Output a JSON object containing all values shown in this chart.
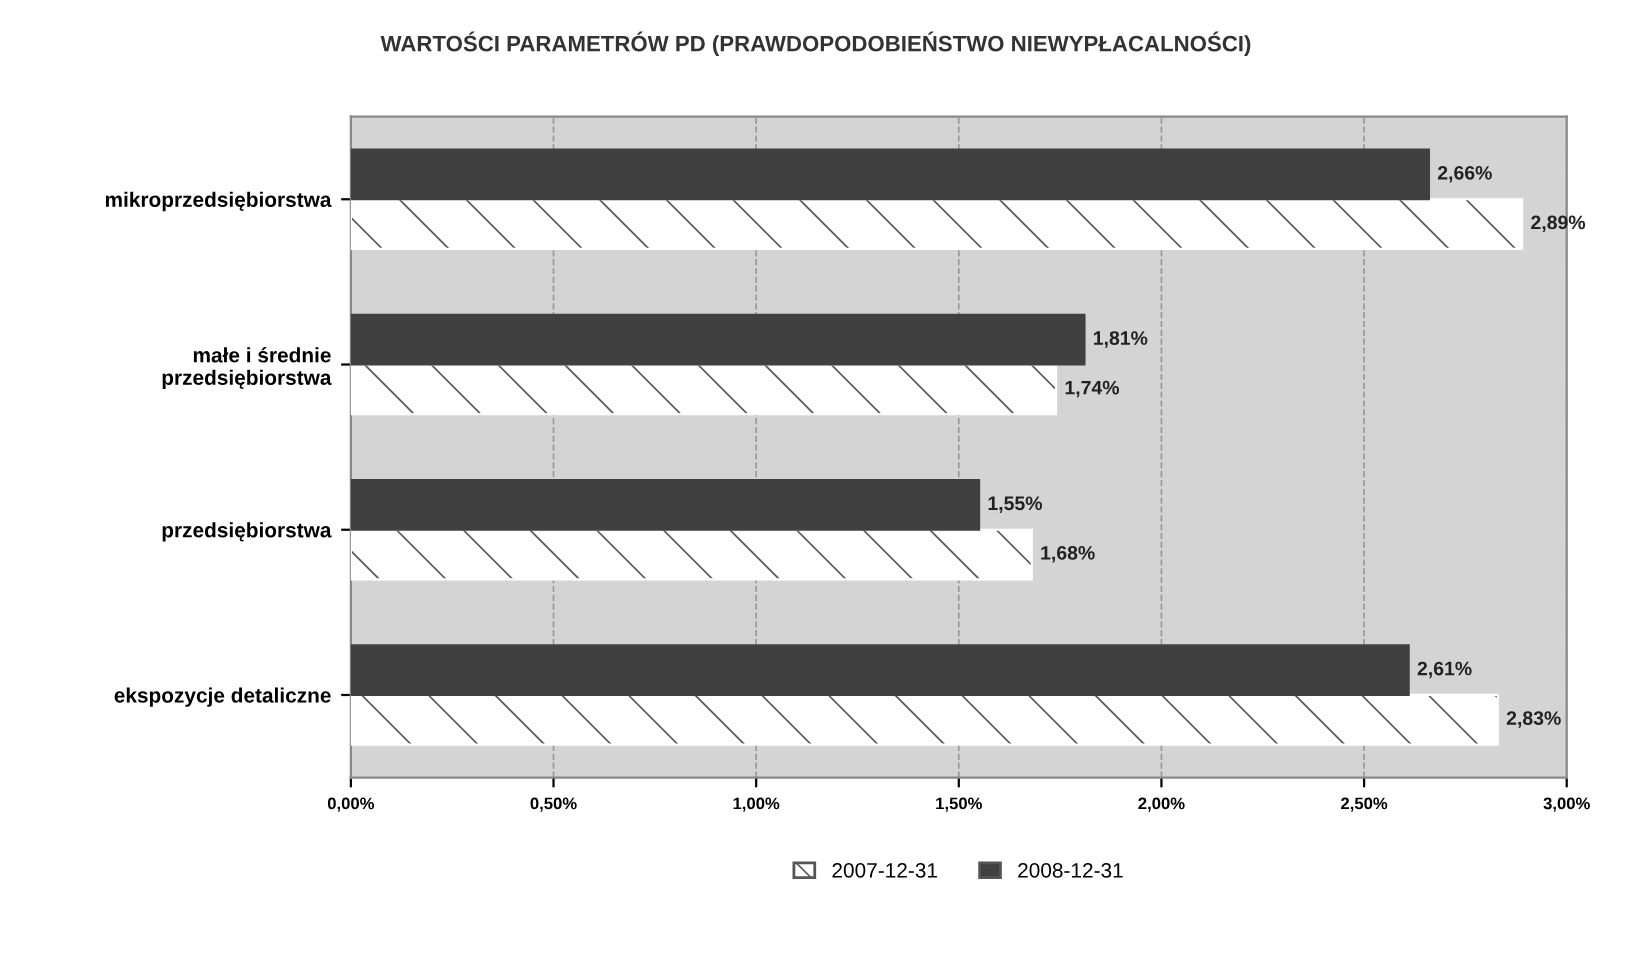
{
  "chart_data": {
    "type": "bar",
    "orientation": "horizontal",
    "title": "WARTOŚCI PARAMETRÓW PD (PRAWDOPODOBIEŃSTWO NIEWYPŁACALNOŚCI)",
    "categories": [
      "mikroprzedsiębiorstwa",
      "małe i średnie\nprzedsiębiorstwa",
      "przedsiębiorstwa",
      "ekspozycje detaliczne"
    ],
    "series": [
      {
        "name": "2007-12-31",
        "color": "#ffffff",
        "values": [
          2.89,
          1.74,
          1.68,
          2.83
        ],
        "value_labels": [
          "2,89%",
          "1,74%",
          "1,68%",
          "2,83%"
        ]
      },
      {
        "name": "2008-12-31",
        "color": "#404040",
        "values": [
          2.66,
          1.81,
          1.55,
          2.61
        ],
        "value_labels": [
          "2,66%",
          "1,81%",
          "1,55%",
          "2,61%"
        ]
      }
    ],
    "xlim": [
      0,
      3
    ],
    "xticks": [
      {
        "value": 0,
        "label": "0,00%"
      },
      {
        "value": 0.5,
        "label": "0,50%"
      },
      {
        "value": 1,
        "label": "1,00%"
      },
      {
        "value": 1.5,
        "label": "1,50%"
      },
      {
        "value": 2,
        "label": "2,00%"
      },
      {
        "value": 2.5,
        "label": "2,50%"
      },
      {
        "value": 3,
        "label": "3,00%"
      }
    ],
    "grid": "x",
    "legend": "bottom"
  }
}
